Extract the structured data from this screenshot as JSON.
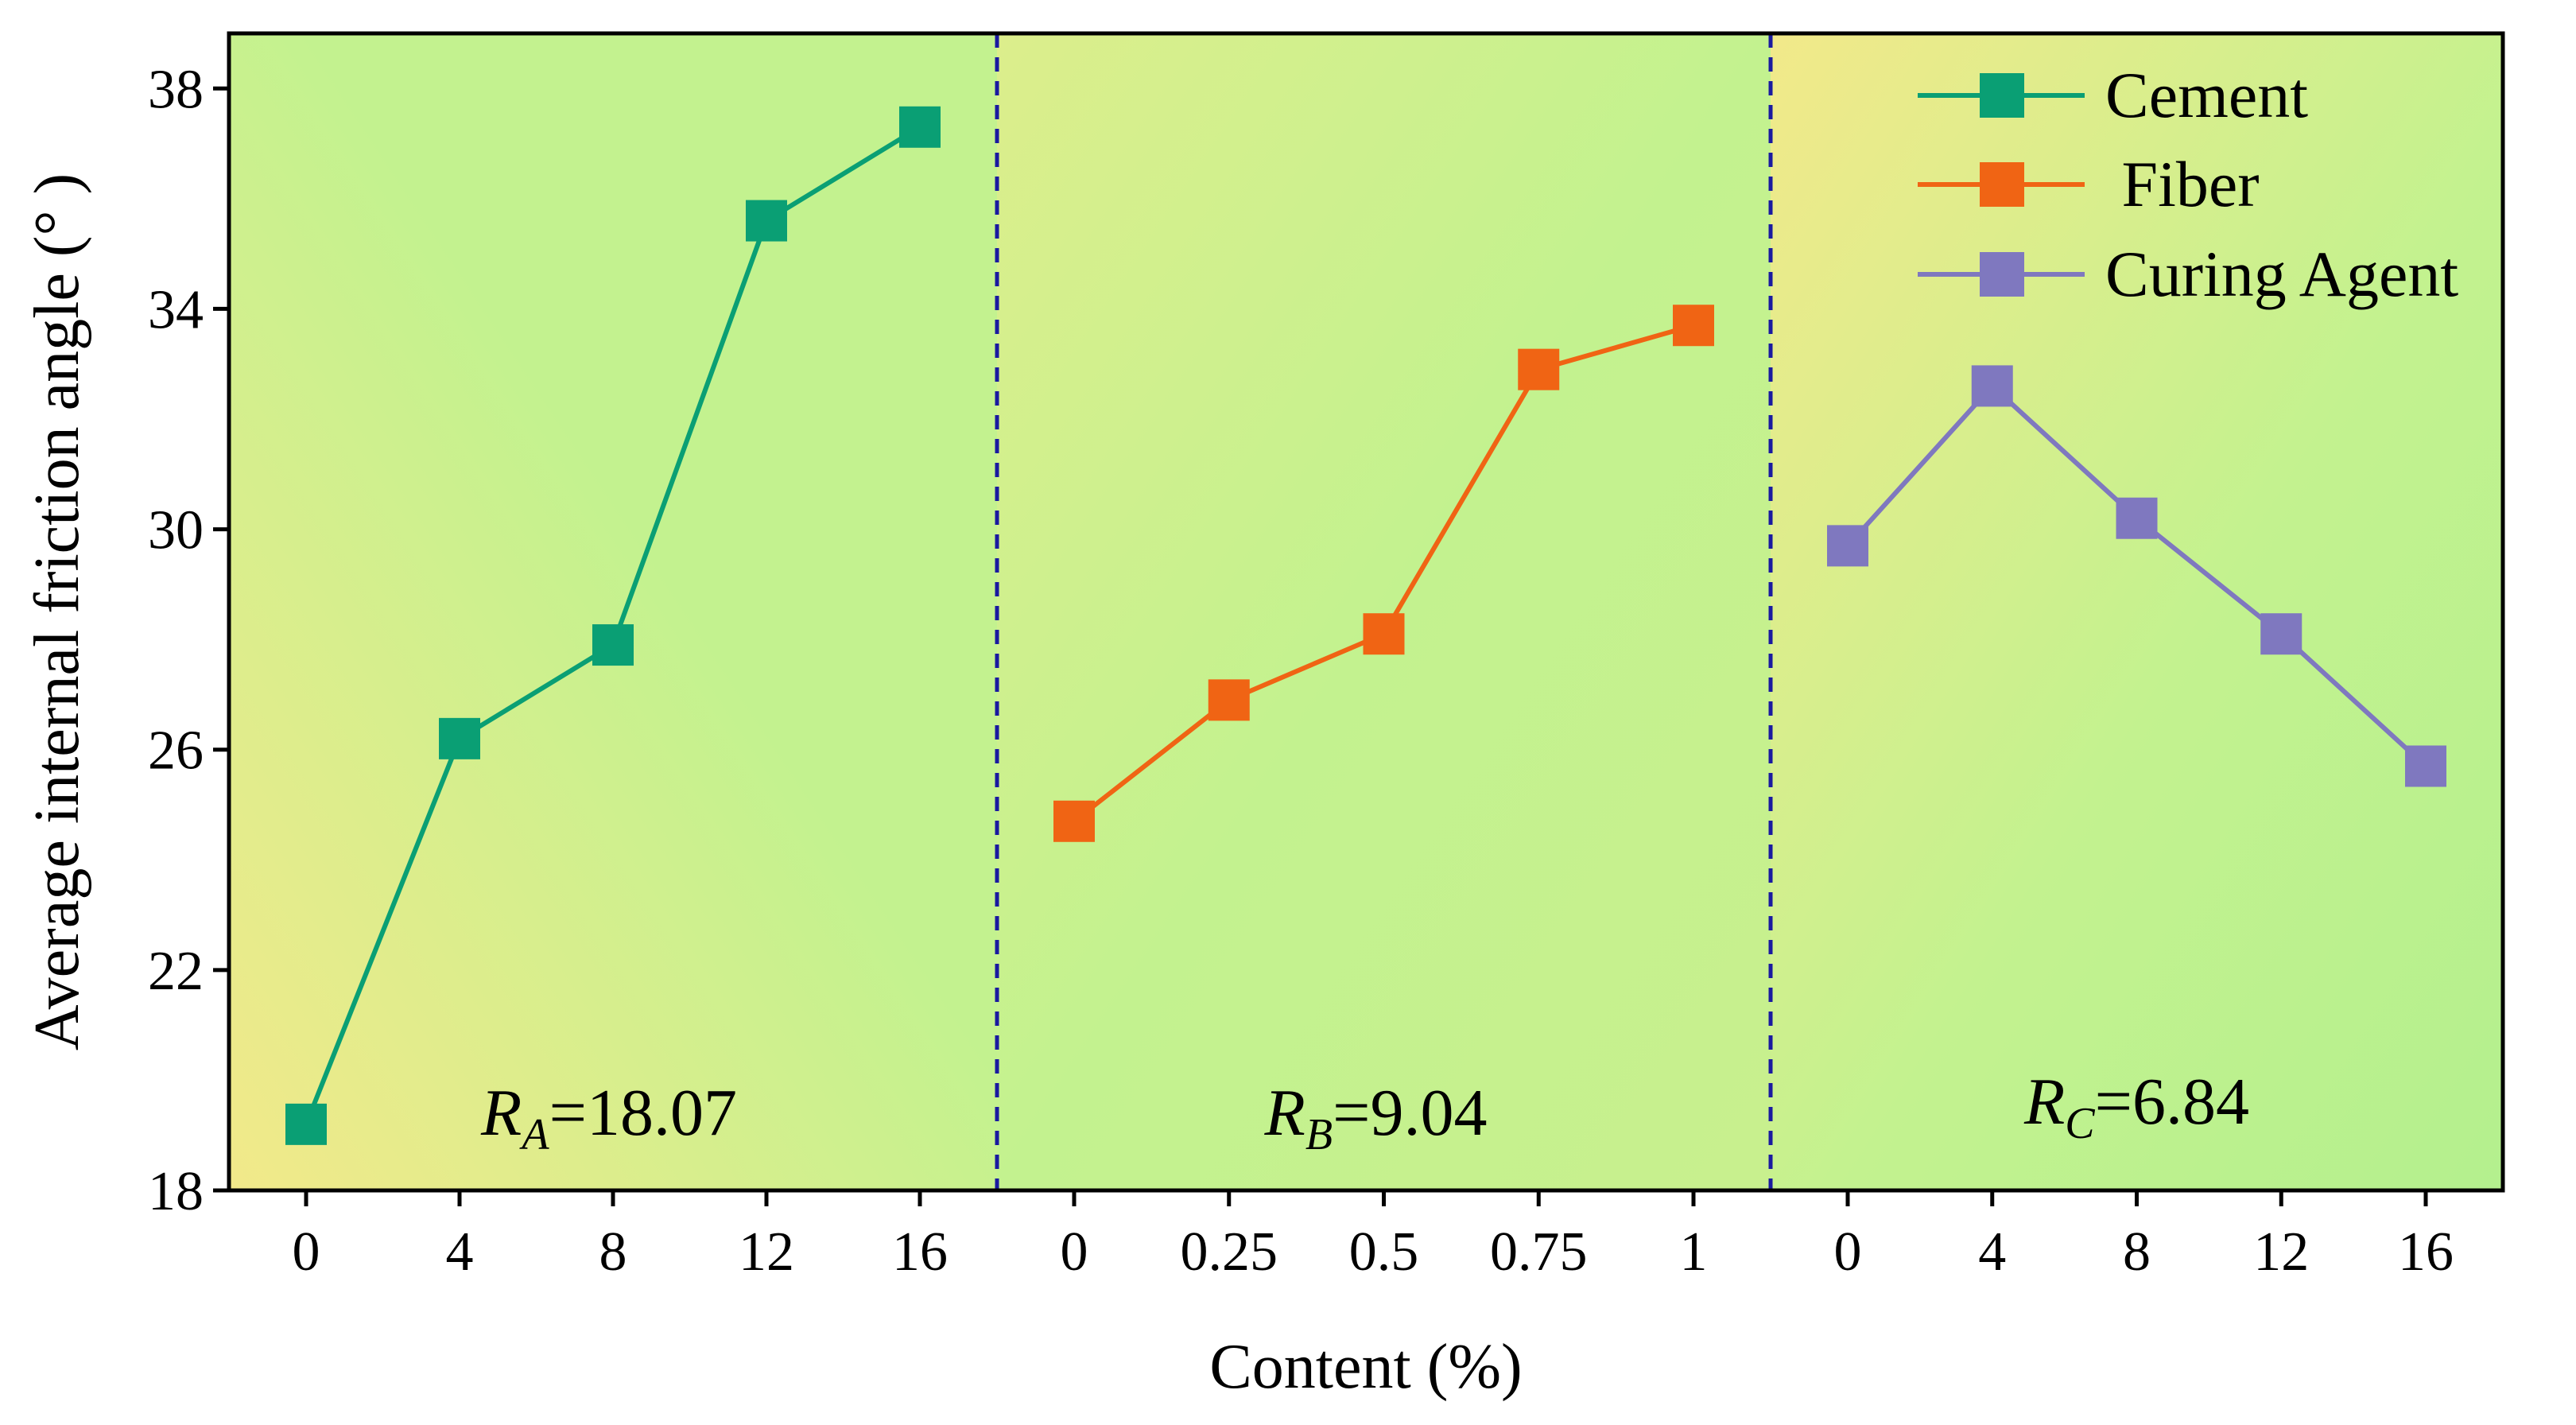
{
  "chart_data": {
    "type": "line",
    "title": "",
    "xlabel": "Content (%)",
    "ylabel": "Average internal friction angle (° )",
    "ylim": [
      18,
      39
    ],
    "yticks": [
      "18",
      "22",
      "26",
      "30",
      "34",
      "38"
    ],
    "grid": false,
    "legend_position": "top-right",
    "background": "gradient",
    "panels": [
      {
        "series_index": 0,
        "x_labels": [
          "0",
          "4",
          "8",
          "12",
          "16"
        ],
        "annotation": {
          "symbol": "R",
          "subscript": "A",
          "value": "=18.07"
        }
      },
      {
        "series_index": 1,
        "x_labels": [
          "0",
          "0.25",
          "0.5",
          "0.75",
          "1"
        ],
        "annotation": {
          "symbol": "R",
          "subscript": "B",
          "value": "=9.04"
        }
      },
      {
        "series_index": 2,
        "x_labels": [
          "0",
          "4",
          "8",
          "12",
          "16"
        ],
        "annotation": {
          "symbol": "R",
          "subscript": "C",
          "value": "=6.84"
        }
      }
    ],
    "series": [
      {
        "name": "Cement",
        "legend_label": "Cement",
        "color": "#0a9f74",
        "x": [
          0,
          4,
          8,
          12,
          16
        ],
        "values": [
          19.2,
          26.2,
          27.9,
          35.6,
          37.3
        ]
      },
      {
        "name": "Fiber",
        "legend_label": " Fiber",
        "color": "#f06414",
        "x": [
          0,
          0.25,
          0.5,
          0.75,
          1
        ],
        "values": [
          24.7,
          26.9,
          28.1,
          32.9,
          33.7
        ]
      },
      {
        "name": "Curing Agent",
        "legend_label": "Curing Agent",
        "color": "#7f78bf",
        "x": [
          0,
          4,
          8,
          12,
          16
        ],
        "values": [
          29.7,
          32.6,
          30.2,
          28.1,
          25.7
        ]
      }
    ],
    "divider_color": "#1a1aa0"
  }
}
